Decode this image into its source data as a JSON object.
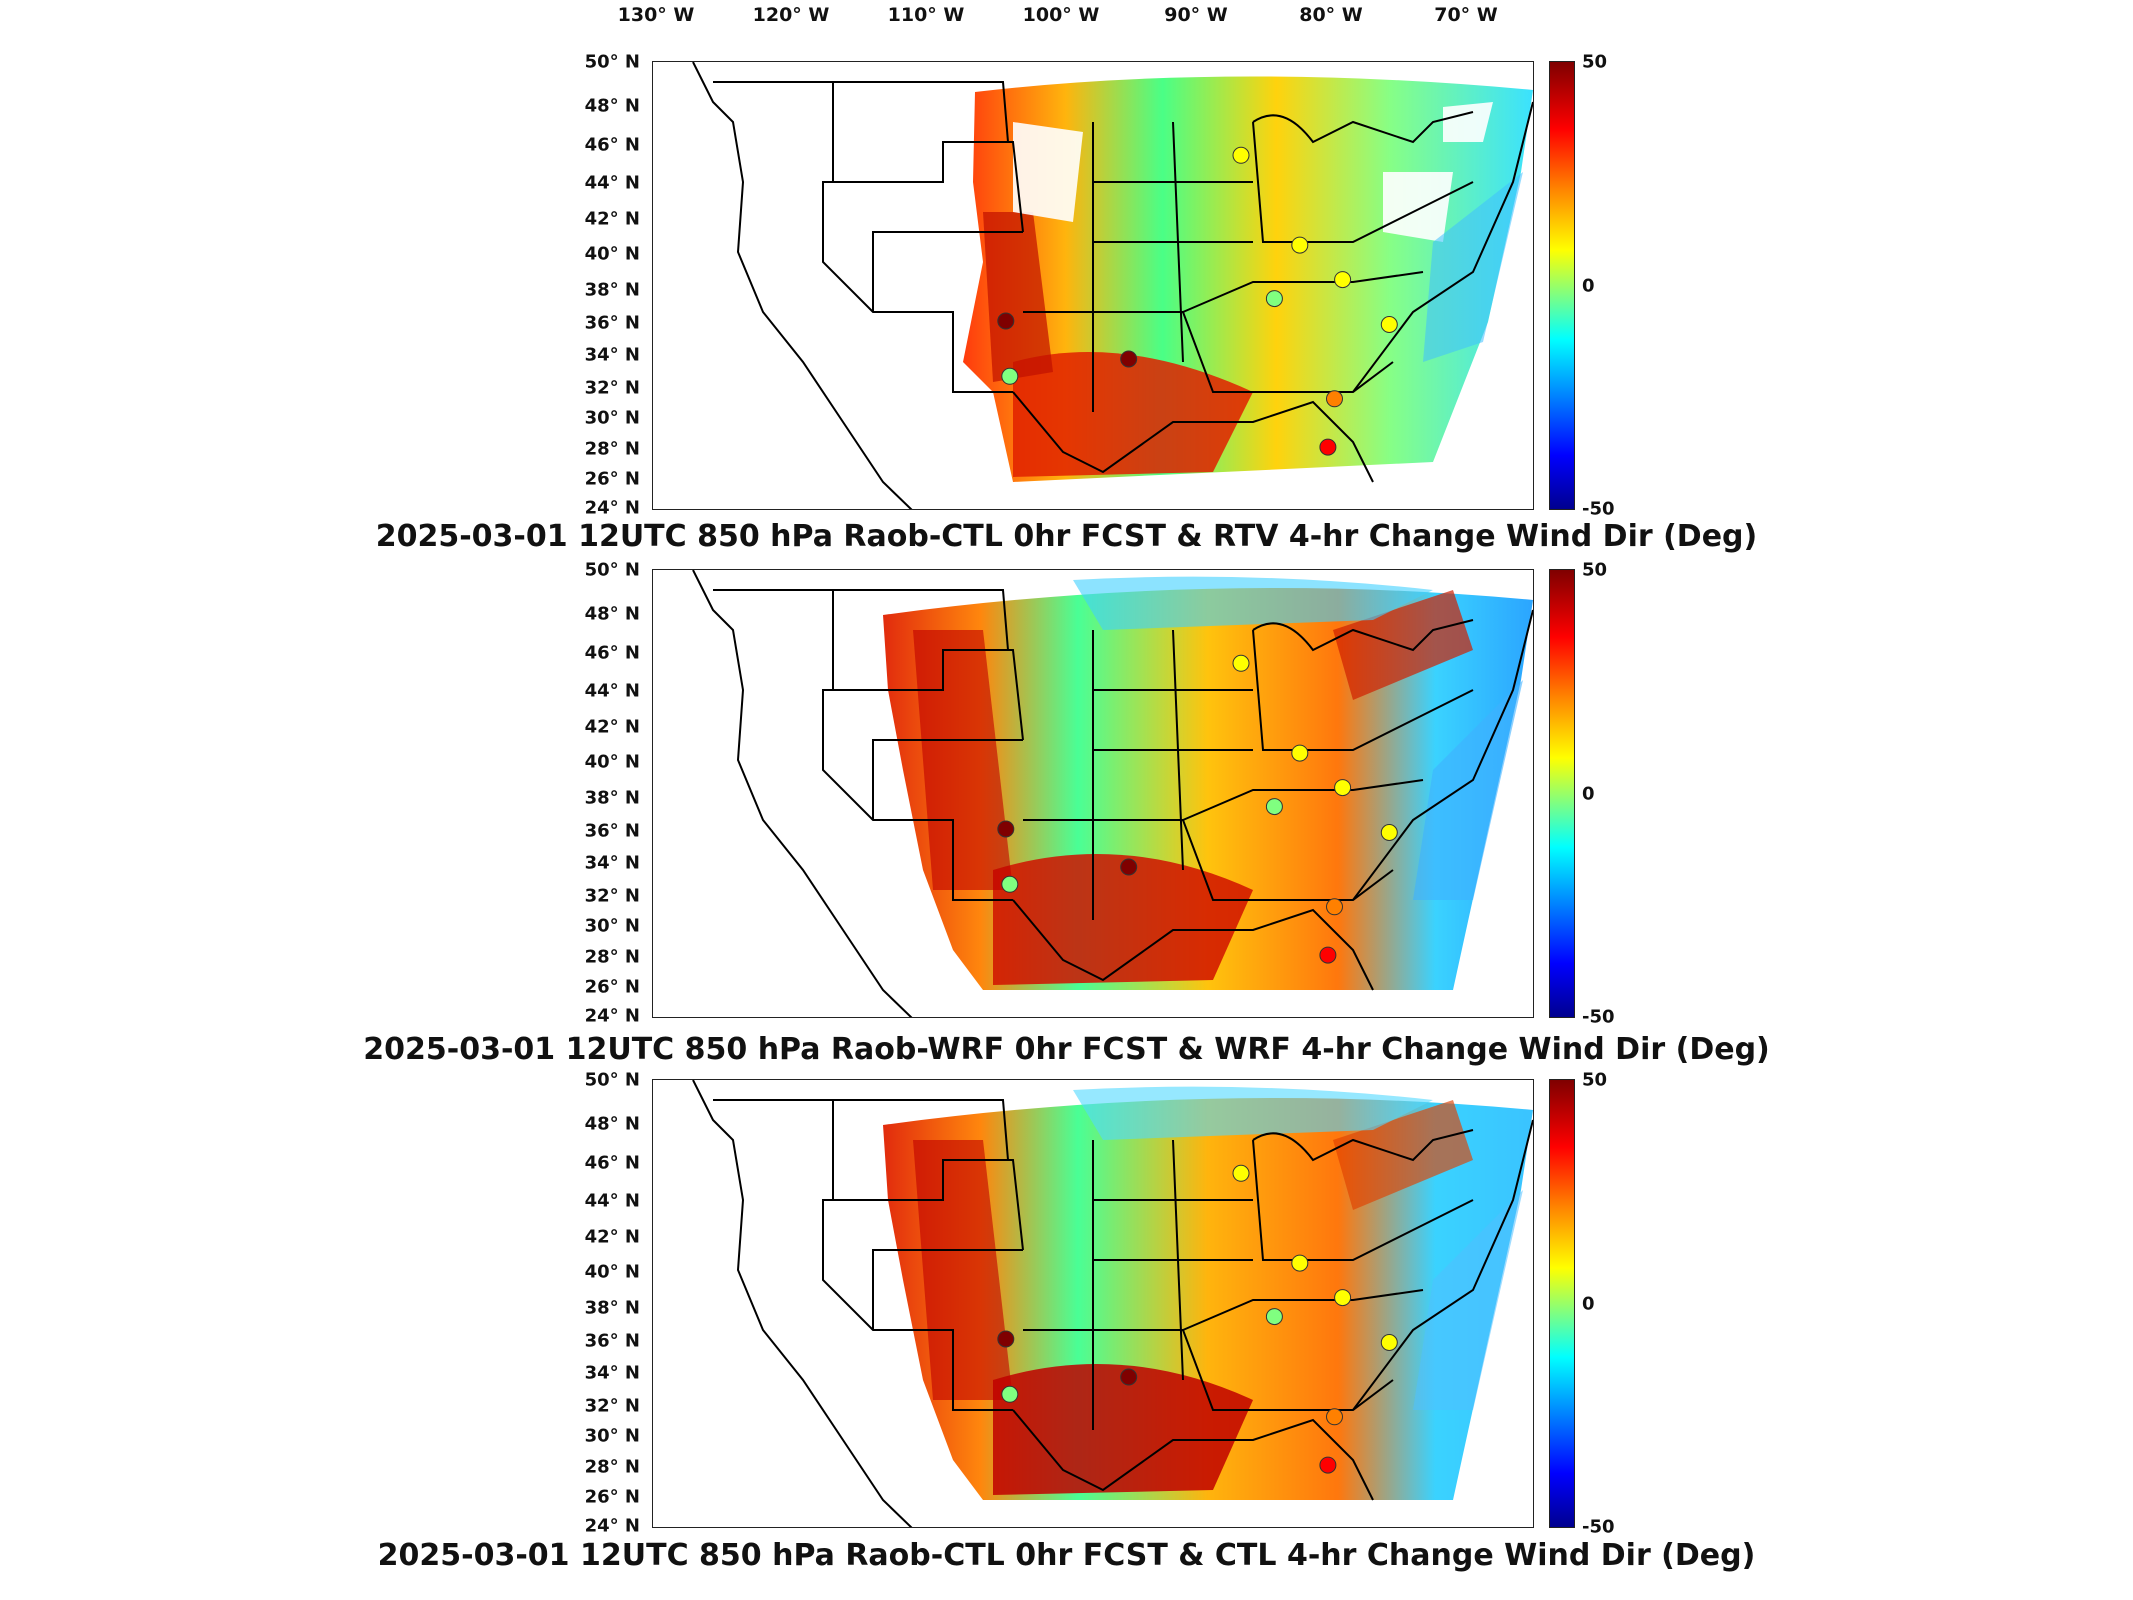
{
  "lon_ticks": [
    "130° W",
    "120° W",
    "110° W",
    "100° W",
    "90° W",
    "80° W",
    "70° W"
  ],
  "lat_ticks": [
    "50° N",
    "48° N",
    "46° N",
    "44° N",
    "42° N",
    "40° N",
    "38° N",
    "36° N",
    "34° N",
    "32° N",
    "30° N",
    "28° N",
    "26° N",
    "24° N"
  ],
  "colorbar": {
    "max_label": "50",
    "mid_label": "0",
    "min_label": "-50",
    "colors": [
      "#7f0000",
      "#ff0000",
      "#ff8000",
      "#ffff00",
      "#80ff80",
      "#00ffff",
      "#0080ff",
      "#0000ff",
      "#00008f"
    ]
  },
  "panels": [
    {
      "title": "2025-03-01 12UTC 850 hPa Raob-CTL 0hr FCST & RTV 4-hr Change Wind Dir (Deg)",
      "stations": [
        {
          "lon": -106.6,
          "lat": 35.0,
          "value": 50
        },
        {
          "lon": -97.4,
          "lat": 32.8,
          "value": 45
        },
        {
          "lon": -106.3,
          "lat": 31.8,
          "value": 2
        },
        {
          "lon": -84.6,
          "lat": 39.4,
          "value": 18
        },
        {
          "lon": -81.4,
          "lat": 37.4,
          "value": 8
        },
        {
          "lon": -86.5,
          "lat": 36.3,
          "value": -5
        },
        {
          "lon": -89.0,
          "lat": 44.6,
          "value": 10
        },
        {
          "lon": -77.9,
          "lat": 34.8,
          "value": 8
        },
        {
          "lon": -82.0,
          "lat": 30.5,
          "value": 30
        },
        {
          "lon": -82.5,
          "lat": 27.7,
          "value": 40
        }
      ]
    },
    {
      "title": "2025-03-01 12UTC 850 hPa Raob-WRF 0hr FCST & WRF 4-hr Change Wind Dir (Deg)",
      "stations": [
        {
          "lon": -106.6,
          "lat": 35.0,
          "value": 50
        },
        {
          "lon": -97.4,
          "lat": 32.8,
          "value": 45
        },
        {
          "lon": -106.3,
          "lat": 31.8,
          "value": 2
        },
        {
          "lon": -84.6,
          "lat": 39.4,
          "value": 18
        },
        {
          "lon": -81.4,
          "lat": 37.4,
          "value": 8
        },
        {
          "lon": -86.5,
          "lat": 36.3,
          "value": -5
        },
        {
          "lon": -89.0,
          "lat": 44.6,
          "value": 10
        },
        {
          "lon": -77.9,
          "lat": 34.8,
          "value": 8
        },
        {
          "lon": -82.0,
          "lat": 30.5,
          "value": 30
        },
        {
          "lon": -82.5,
          "lat": 27.7,
          "value": 40
        }
      ]
    },
    {
      "title": "2025-03-01 12UTC 850 hPa Raob-CTL 0hr FCST & CTL 4-hr Change Wind Dir (Deg)",
      "stations": [
        {
          "lon": -106.6,
          "lat": 35.0,
          "value": 50
        },
        {
          "lon": -97.4,
          "lat": 32.8,
          "value": 45
        },
        {
          "lon": -106.3,
          "lat": 31.8,
          "value": 2
        },
        {
          "lon": -84.6,
          "lat": 39.4,
          "value": 18
        },
        {
          "lon": -81.4,
          "lat": 37.4,
          "value": 8
        },
        {
          "lon": -86.5,
          "lat": 36.3,
          "value": -5
        },
        {
          "lon": -89.0,
          "lat": 44.6,
          "value": 10
        },
        {
          "lon": -77.9,
          "lat": 34.8,
          "value": 8
        },
        {
          "lon": -82.0,
          "lat": 30.5,
          "value": 30
        },
        {
          "lon": -82.5,
          "lat": 27.7,
          "value": 40
        }
      ]
    }
  ]
}
